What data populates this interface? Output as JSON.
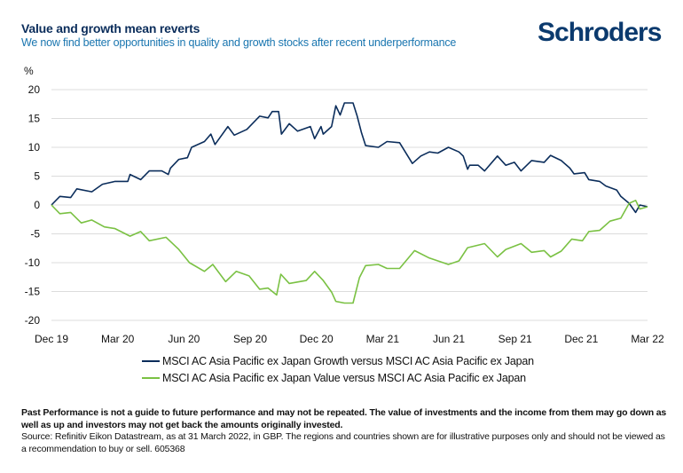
{
  "header": {
    "title": "Value and growth mean reverts",
    "subtitle": "We now find better opportunities in quality and growth stocks after recent underperformance",
    "logo": "Schroders"
  },
  "colors": {
    "growth": "#0b2d5b",
    "value": "#7ac143",
    "grid": "#dcdcdc"
  },
  "chart_data": {
    "type": "line",
    "title": "Value and growth mean reverts",
    "ylabel": "%",
    "xlabel": "",
    "ylim": [
      -20,
      20
    ],
    "yticks": [
      20,
      15,
      10,
      5,
      0,
      -5,
      -10,
      -15,
      -20
    ],
    "ytick_labels": [
      "20",
      "15",
      "10",
      "5",
      "0",
      "-5",
      "-10",
      "-15",
      "-20"
    ],
    "x_unit": "months since Dec 19",
    "xlim": [
      0,
      27
    ],
    "xticks": [
      0,
      3,
      6,
      9,
      12,
      15,
      18,
      21,
      24,
      27
    ],
    "xtick_labels": [
      "Dec 19",
      "Mar 20",
      "Jun 20",
      "Sep 20",
      "Dec 20",
      "Mar 21",
      "Jun 21",
      "Sep 21",
      "Dec 21",
      "Mar 22"
    ],
    "grid": true,
    "legend_position": "bottom",
    "series": [
      {
        "name": "MSCI AC Asia Pacific ex Japan Growth versus MSCI AC Asia Pacific ex Japan",
        "color": "#0b2d5b",
        "x": [
          0,
          0.38,
          0.87,
          1.15,
          1.83,
          2.31,
          2.88,
          3.46,
          3.56,
          4.04,
          4.43,
          5.0,
          5.29,
          5.39,
          5.77,
          6.16,
          6.35,
          6.93,
          7.22,
          7.41,
          7.99,
          8.28,
          8.85,
          9.43,
          9.81,
          10.0,
          10.29,
          10.42,
          10.77,
          11.15,
          11.73,
          11.92,
          12.21,
          12.31,
          12.69,
          12.88,
          13.08,
          13.27,
          13.66,
          13.85,
          14.04,
          14.23,
          14.81,
          15.2,
          15.77,
          16.35,
          16.73,
          17.12,
          17.5,
          17.98,
          18.46,
          18.65,
          18.85,
          18.94,
          19.33,
          19.62,
          20.2,
          20.58,
          20.97,
          21.27,
          21.75,
          22.32,
          22.61,
          23.09,
          23.48,
          23.67,
          24.15,
          24.34,
          24.83,
          25.11,
          25.6,
          25.79,
          26.17,
          26.46,
          26.65,
          27
        ],
        "values": [
          0,
          1.5,
          1.3,
          2.8,
          2.3,
          3.6,
          4.1,
          4.1,
          5.3,
          4.4,
          5.9,
          5.9,
          5.3,
          6.4,
          7.9,
          8.2,
          10,
          11,
          12.3,
          10.5,
          13.6,
          12.1,
          13.1,
          15.4,
          15.1,
          16.2,
          16.2,
          12.3,
          14.1,
          12.8,
          13.6,
          11.5,
          13.6,
          12.3,
          13.6,
          17.2,
          15.6,
          17.7,
          17.7,
          15.4,
          12.6,
          10.3,
          10,
          11,
          10.8,
          7.2,
          8.5,
          9.2,
          9,
          10,
          9.2,
          8.5,
          6.2,
          6.9,
          6.9,
          5.9,
          8.5,
          6.9,
          7.4,
          5.9,
          7.7,
          7.4,
          8.6,
          7.7,
          6.4,
          5.4,
          5.6,
          4.4,
          4.1,
          3.3,
          2.6,
          1.5,
          0.3,
          -1.3,
          0,
          -0.3
        ]
      },
      {
        "name": "MSCI AC Asia Pacific ex Japan Value versus MSCI AC Asia Pacific ex Japan",
        "color": "#7ac143",
        "x": [
          0,
          0.38,
          0.87,
          1.35,
          1.83,
          2.4,
          2.88,
          3.56,
          4.04,
          4.43,
          5.19,
          5.77,
          6.25,
          6.93,
          7.31,
          7.89,
          8.37,
          8.95,
          9.43,
          9.81,
          10.2,
          10.39,
          10.77,
          11.54,
          11.92,
          12.31,
          12.69,
          12.88,
          13.27,
          13.66,
          13.95,
          14.23,
          14.81,
          15.2,
          15.77,
          16.45,
          17.12,
          17.98,
          18.46,
          18.85,
          19.62,
          20.2,
          20.58,
          21.27,
          21.75,
          22.32,
          22.61,
          23.09,
          23.57,
          24.05,
          24.34,
          24.83,
          25.3,
          25.79,
          26.17,
          26.46,
          26.65,
          27
        ],
        "values": [
          0,
          -1.5,
          -1.3,
          -3.1,
          -2.6,
          -3.8,
          -4.1,
          -5.4,
          -4.6,
          -6.2,
          -5.6,
          -7.7,
          -10,
          -11.5,
          -10.3,
          -13.3,
          -11.5,
          -12.3,
          -14.6,
          -14.4,
          -15.6,
          -12,
          -13.6,
          -13.1,
          -11.5,
          -13.1,
          -15.1,
          -16.7,
          -17,
          -17,
          -12.6,
          -10.5,
          -10.3,
          -11,
          -11,
          -7.9,
          -9.2,
          -10.3,
          -9.7,
          -7.4,
          -6.7,
          -9,
          -7.7,
          -6.7,
          -8.2,
          -7.9,
          -9,
          -8,
          -5.9,
          -6.2,
          -4.6,
          -4.4,
          -2.8,
          -2.3,
          0.3,
          0.8,
          -0.7,
          -0.3
        ]
      }
    ]
  },
  "footer": {
    "disclaimer": "Past Performance is not a guide to future performance and may not be repeated. The value of investments and the income from them may go down as well as up and investors may not get back the amounts originally invested.",
    "source": "Source: Refinitiv Eikon Datastream, as at 31 March 2022, in GBP. The regions and countries shown are for illustrative purposes only and should not be viewed as a recommendation to buy or sell. 605368"
  }
}
